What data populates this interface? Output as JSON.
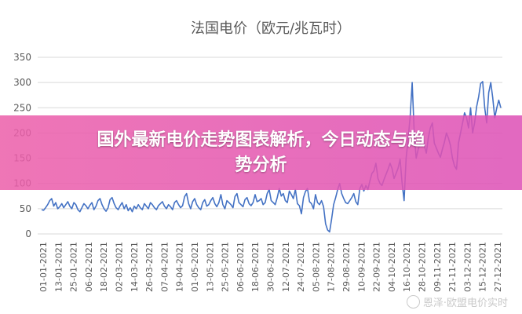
{
  "chart_data": {
    "type": "line",
    "title": "法国电价（欧元/兆瓦时）",
    "ylim": [
      0,
      350
    ],
    "yticks": [
      0,
      50,
      100,
      150,
      200,
      250,
      300,
      350
    ],
    "grid": true,
    "line_color": "#4472c4",
    "x_tick_labels": [
      "01-01-2021",
      "13-01-2021",
      "25-01-2021",
      "06-02-2021",
      "18-02-2021",
      "02-03-2021",
      "14-03-2021",
      "26-03-2021",
      "07-04-2021",
      "19-04-2021",
      "01-05-2021",
      "13-05-2021",
      "25-05-2021",
      "06-06-2021",
      "18-06-2021",
      "30-06-2021",
      "12-07-2021",
      "24-07-2021",
      "05-08-2021",
      "17-08-2021",
      "29-08-2021",
      "10-09-2021",
      "22-09-2021",
      "04-10-2021",
      "16-10-2021",
      "28-10-2021",
      "09-11-2021",
      "21-11-2021",
      "03-12-2021",
      "15-12-2021",
      "27-12-2021"
    ],
    "series": [
      {
        "values": [
          48,
          47,
          52,
          58,
          66,
          70,
          55,
          62,
          50,
          54,
          60,
          52,
          58,
          64,
          55,
          50,
          62,
          58,
          48,
          44,
          52,
          60,
          56,
          50,
          57,
          62,
          48,
          55,
          66,
          70,
          58,
          50,
          45,
          52,
          68,
          72,
          60,
          52,
          48,
          56,
          62,
          50,
          58,
          46,
          52,
          44,
          55,
          50,
          58,
          52,
          48,
          60,
          55,
          50,
          62,
          58,
          52,
          48,
          56,
          60,
          64,
          55,
          50,
          58,
          54,
          48,
          62,
          66,
          58,
          52,
          56,
          74,
          80,
          60,
          50,
          64,
          70,
          58,
          52,
          48,
          62,
          68,
          55,
          58,
          66,
          72,
          60,
          54,
          62,
          78,
          58,
          50,
          66,
          62,
          58,
          52,
          74,
          80,
          62,
          58,
          54,
          68,
          72,
          60,
          56,
          62,
          78,
          64,
          66,
          70,
          58,
          62,
          80,
          88,
          66,
          62,
          58,
          72,
          90,
          75,
          80,
          66,
          62,
          85,
          78,
          70,
          88,
          60,
          56,
          40,
          72,
          84,
          90,
          64,
          60,
          50,
          78,
          62,
          58,
          66,
          54,
          20,
          8,
          4,
          30,
          58,
          72,
          88,
          100,
          80,
          70,
          62,
          60,
          66,
          72,
          80,
          64,
          58,
          90,
          98,
          85,
          96,
          88,
          105,
          120,
          125,
          140,
          110,
          100,
          96,
          108,
          118,
          128,
          140,
          130,
          110,
          120,
          130,
          148,
          100,
          66,
          150,
          190,
          232,
          300,
          200,
          150,
          168,
          180,
          200,
          175,
          160,
          190,
          210,
          220,
          180,
          170,
          160,
          152,
          168,
          182,
          200,
          190,
          175,
          150,
          135,
          128,
          180,
          200,
          220,
          240,
          230,
          210,
          250,
          200,
          220,
          252,
          272,
          298,
          302,
          250,
          220,
          280,
          300,
          270,
          230,
          250,
          265,
          250
        ]
      }
    ]
  },
  "banner": {
    "line1": "国外最新电价走势图表解析，今日动态与趋",
    "line2": "势分析"
  },
  "watermark": {
    "text": "恩泽·欧盟电价实时"
  }
}
